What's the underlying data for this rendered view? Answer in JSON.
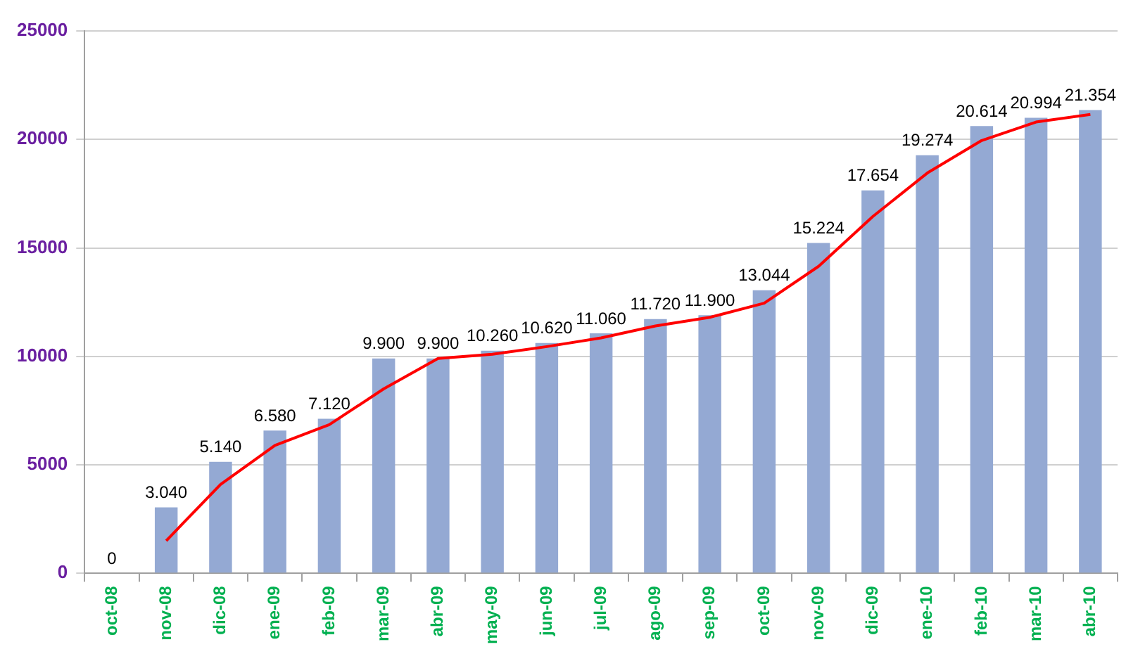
{
  "chart_data": {
    "type": "bar",
    "categories": [
      "oct-08",
      "nov-08",
      "dic-08",
      "ene-09",
      "feb-09",
      "mar-09",
      "abr-09",
      "may-09",
      "jun-09",
      "jul-09",
      "ago-09",
      "sep-09",
      "oct-09",
      "nov-09",
      "dic-09",
      "ene-10",
      "feb-10",
      "mar-10",
      "abr-10"
    ],
    "series": [
      {
        "color": "#94a9d3",
        "values": [
          0,
          3040,
          5140,
          6580,
          7120,
          9900,
          9900,
          10260,
          10620,
          11060,
          11720,
          11900,
          13044,
          15224,
          17654,
          19274,
          20614,
          20994,
          21354
        ],
        "value_labels": [
          "0",
          "3.040",
          "5.140",
          "6.580",
          "7.120",
          "9.900",
          "9.900",
          "10.260",
          "10.620",
          "11.060",
          "11.720",
          "11.900",
          "13.044",
          "15.224",
          "17.654",
          "19.274",
          "20.614",
          "20.994",
          "21.354"
        ]
      },
      {
        "type": "line",
        "color": "#ff0000",
        "marker": "none",
        "line_style": "solid",
        "values": [
          null,
          1500,
          4100,
          5900,
          6850,
          8500,
          9900,
          10100,
          10450,
          10850,
          11400,
          11800,
          12450,
          14150,
          16450,
          18450,
          19950,
          20800,
          21150
        ]
      }
    ],
    "ylim": [
      0,
      25000
    ],
    "yticks": [
      0,
      5000,
      10000,
      15000,
      20000,
      25000
    ],
    "grid": "y",
    "legend": false
  }
}
